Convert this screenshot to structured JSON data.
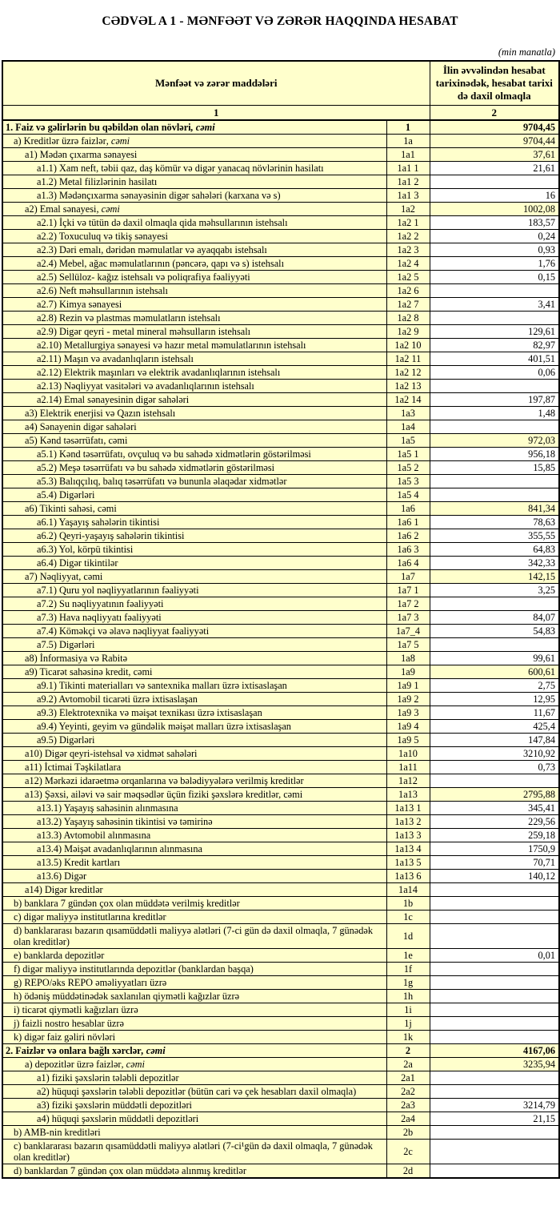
{
  "page": {
    "title": "CƏDVƏL A 1 - MƏNFƏƏT VƏ ZƏRƏR HAQQINDA HESABAT",
    "unit_note": "(min manatla)"
  },
  "colors": {
    "highlight": "#FFFFCC",
    "white": "#FFFFFF",
    "border": "#000000",
    "text": "#000000"
  },
  "table": {
    "header": {
      "items_label": "Mənfəət və zərər maddələri",
      "value_label": "İlin əvvəlindən hesabat tarixinədək, hesabat tarixi də daxil olmaqla",
      "items_col_no": "1",
      "value_col_no": "2"
    },
    "rows": [
      {
        "label": "1. Faiz və gəlirlərin bu qəbildən olan növləri",
        "italic": ", cəmi",
        "code": "1",
        "value": "9704,45",
        "level": 0,
        "bold": true,
        "hl": true
      },
      {
        "label": "a) Kreditlər üzrə faizlər",
        "italic": ", cəmi",
        "code": "1a",
        "value": "9704,44",
        "level": 1,
        "hl": true
      },
      {
        "label": "a1) Mədən çıxarma sənayesi",
        "code": "1a1",
        "value": "37,61",
        "level": 2,
        "hl": true
      },
      {
        "label": "a1.1) Xam neft, təbii qaz, daş kömür və digər yanacaq növlərinin hasilatı",
        "code": "1a1 1",
        "value": "21,61",
        "level": 3
      },
      {
        "label": "a1.2) Metal filizlərinin hasilatı",
        "code": "1a1 2",
        "value": "",
        "level": 3
      },
      {
        "label": "a1.3) Mədənçıxarma sənayəsinin digər sahələri (karxana və s)",
        "code": "1a1 3",
        "value": "16",
        "level": 3
      },
      {
        "label": "a2) Emal sənayesi",
        "italic": ", cəmi",
        "code": "1a2",
        "value": "1002,08",
        "level": 2,
        "hl": true
      },
      {
        "label": "a2.1) İçki və tütün də daxil olmaqla qida məhsullarının istehsalı",
        "code": "1a2 1",
        "value": "183,57",
        "level": 3
      },
      {
        "label": "a2.2) Toxuculuq və tikiş sənayesi",
        "code": "1a2 2",
        "value": "0,24",
        "level": 3
      },
      {
        "label": "a2.3) Dəri emalı, dəridən məmulatlar və ayaqqabı istehsalı",
        "code": "1a2 3",
        "value": "0,93",
        "level": 3
      },
      {
        "label": "a2.4) Mebel, ağac məmulatlarının (pəncərə, qapı və s) istehsalı",
        "code": "1a2 4",
        "value": "1,76",
        "level": 3
      },
      {
        "label": "a2.5) Sellüloz- kağız istehsalı və poliqrafiya fəaliyyəti",
        "code": "1a2 5",
        "value": "0,15",
        "level": 3
      },
      {
        "label": "a2.6) Neft məhsullarının istehsalı",
        "code": "1a2 6",
        "value": "",
        "level": 3
      },
      {
        "label": "a2.7) Kimya sənayesi",
        "code": "1a2 7",
        "value": "3,41",
        "level": 3
      },
      {
        "label": "a2.8) Rezin və plastmas məmulatların istehsalı",
        "code": "1a2 8",
        "value": "",
        "level": 3
      },
      {
        "label": "a2.9) Digər qeyri - metal mineral məhsulların istehsalı",
        "code": "1a2 9",
        "value": "129,61",
        "level": 3
      },
      {
        "label": "a2.10) Metallurgiya sənayesi və hazır metal məmulatlarının istehsalı",
        "code": "1a2 10",
        "value": "82,97",
        "level": 3
      },
      {
        "label": "a2.11) Maşın və avadanlıqların istehsalı",
        "code": "1a2 11",
        "value": "401,51",
        "level": 3
      },
      {
        "label": "a2.12) Elektrik maşınları və elektrik avadanlıqlarının istehsalı",
        "code": "1a2 12",
        "value": "0,06",
        "level": 3
      },
      {
        "label": "a2.13) Nəqliyyat vasitələri və avadanlıqlarının istehsalı",
        "code": "1a2 13",
        "value": "",
        "level": 3
      },
      {
        "label": "a2.14) Emal sənayesinin digər sahələri",
        "code": "1a2 14",
        "value": "197,87",
        "level": 3
      },
      {
        "label": "a3) Elektrik enerjisi və Qazın istehsalı",
        "code": "1a3",
        "value": "1,48",
        "level": 2
      },
      {
        "label": "a4) Sənayenin digər sahələri",
        "code": "1a4",
        "value": "",
        "level": 2
      },
      {
        "label": "a5) Kənd təsərrüfatı, cəmi",
        "code": "1a5",
        "value": "972,03",
        "level": 2,
        "hl": true
      },
      {
        "label": "a5.1) Kənd təsərrüfatı, ovçuluq və bu sahədə xidmətlərin göstərilməsi",
        "code": "1a5 1",
        "value": "956,18",
        "level": 3
      },
      {
        "label": "a5.2) Meşə təsərrüfatı və bu sahədə xidmətlərin göstərilməsi",
        "code": "1a5 2",
        "value": "15,85",
        "level": 3
      },
      {
        "label": "a5.3) Balıqçılıq, balıq təsərrüfatı və bununla əlaqədar xidmətlər",
        "code": "1a5 3",
        "value": "",
        "level": 3
      },
      {
        "label": "a5.4) Digərləri",
        "code": "1a5 4",
        "value": "",
        "level": 3
      },
      {
        "label": "a6) Tikinti sahəsi, cəmi",
        "code": "1a6",
        "value": "841,34",
        "level": 2,
        "hl": true
      },
      {
        "label": "a6.1) Yaşayış sahələrin tikintisi",
        "code": "1a6 1",
        "value": "78,63",
        "level": 3
      },
      {
        "label": "a6.2) Qeyri-yaşayış sahələrin tikintisi",
        "code": "1a6 2",
        "value": "355,55",
        "level": 3
      },
      {
        "label": "a6.3) Yol, körpü tikintisi",
        "code": "1a6 3",
        "value": "64,83",
        "level": 3
      },
      {
        "label": "a6.4) Digər tikintilər",
        "code": "1a6 4",
        "value": "342,33",
        "level": 3
      },
      {
        "label": "a7) Nəqliyyat, cəmi",
        "code": "1a7",
        "value": "142,15",
        "level": 2,
        "hl": true
      },
      {
        "label": "a7.1) Quru yol nəqliyyatlarının fəaliyyəti",
        "code": "1a7 1",
        "value": "3,25",
        "level": 3
      },
      {
        "label": "a7.2) Su nəqliyyatının fəaliyyəti",
        "code": "1a7 2",
        "value": "",
        "level": 3
      },
      {
        "label": "a7.3) Hava nəqliyyatı fəaliyyəti",
        "code": "1a7 3",
        "value": "84,07",
        "level": 3
      },
      {
        "label": "a7.4) Köməkçi və əlavə nəqliyyat fəaliyyəti",
        "code": "1a7_4",
        "value": "54,83",
        "level": 3
      },
      {
        "label": "a7.5) Digərləri",
        "code": "1a7 5",
        "value": "",
        "level": 3
      },
      {
        "label": "a8)  İnformasiya və Rabitə",
        "code": "1a8",
        "value": "99,61",
        "level": 2
      },
      {
        "label": "a9) Ticarət sahəsinə kredit, cəmi",
        "code": "1a9",
        "value": "600,61",
        "level": 2,
        "hl": true
      },
      {
        "label": "a9.1) Tikinti materialları və santexnika malları üzrə ixtisaslaşan",
        "code": "1a9 1",
        "value": "2,75",
        "level": 3
      },
      {
        "label": "a9.2) Avtomobil ticarəti üzrə ixtisaslaşan",
        "code": "1a9 2",
        "value": "12,95",
        "level": 3
      },
      {
        "label": "a9.3) Elektrotexnika və məişət texnikası üzrə ixtisaslaşan",
        "code": "1a9 3",
        "value": "11,67",
        "level": 3
      },
      {
        "label": "a9.4) Yeyinti, geyim və gündəlik məişət malları üzrə ixtisaslaşan",
        "code": "1a9 4",
        "value": "425,4",
        "level": 3
      },
      {
        "label": "a9.5) Digərləri",
        "code": "1a9 5",
        "value": "147,84",
        "level": 3
      },
      {
        "label": "a10) Digər qeyri-istehsal və xidmət sahələri",
        "code": "1a10",
        "value": "3210,92",
        "level": 2
      },
      {
        "label": "a11) İctimai Təşkilatlara",
        "code": "1a11",
        "value": "0,73",
        "level": 2
      },
      {
        "label": "a12) Mərkəzi  idarəetmə orqanlarına və bələdiyyələrə verilmiş kreditlər",
        "code": "1a12",
        "value": "",
        "level": 2
      },
      {
        "label": "a13) Şəxsi, ailəvi və sair məqsədlər üçün fiziki şəxslərə kreditlər, cəmi",
        "code": "1a13",
        "value": "2795,88",
        "level": 2,
        "hl": true
      },
      {
        "label": "a13.1) Yaşayış sahəsinin alınmasına",
        "code": "1a13 1",
        "value": "345,41",
        "level": 3
      },
      {
        "label": "a13.2) Yaşayış sahəsinin tikintisi və təmirinə",
        "code": "1a13 2",
        "value": "229,56",
        "level": 3
      },
      {
        "label": "a13.3) Avtomobil alınmasına",
        "code": "1a13 3",
        "value": "259,18",
        "level": 3
      },
      {
        "label": "a13.4) Məişət avadanlıqlarının alınmasına",
        "code": "1a13 4",
        "value": "1750,9",
        "level": 3
      },
      {
        "label": "a13.5) Kredit kartları",
        "code": "1a13 5",
        "value": "70,71",
        "level": 3
      },
      {
        "label": "a13.6) Digər",
        "code": "1a13 6",
        "value": "140,12",
        "level": 3
      },
      {
        "label": "a14) Digər kreditlər",
        "code": "1a14",
        "value": "",
        "level": 2
      },
      {
        "label": "b) banklara 7 gündən çox olan müddətə verilmiş kreditlər",
        "code": "1b",
        "value": "",
        "level": 1
      },
      {
        "label": "c) digər maliyyə institutlarına kreditlər",
        "code": "1c",
        "value": "",
        "level": 1
      },
      {
        "label": "d) banklararası bazarın qısamüddətli maliyyə alətləri (7-ci gün də daxil olmaqla, 7 günədək olan kreditlər)",
        "code": "1d",
        "value": "",
        "level": 1
      },
      {
        "label": "e) banklarda depozitlər",
        "code": "1e",
        "value": "0,01",
        "level": 1
      },
      {
        "label": "f) digər maliyyə institutlarında depozitlər (banklardan başqa)",
        "code": "1f",
        "value": "",
        "level": 1
      },
      {
        "label": "g) REPO/əks REPO əməliyyatları üzrə",
        "code": "1g",
        "value": "",
        "level": 1
      },
      {
        "label": "h) ödəniş müddətinədək saxlanılan qiymətli kağızlar üzrə",
        "code": "1h",
        "value": "",
        "level": 1
      },
      {
        "label": "i) ticarət qiymətli kağızları üzrə",
        "code": "1i",
        "value": "",
        "level": 1
      },
      {
        "label": "j) faizli nostro hesablar üzrə",
        "code": "1j",
        "value": "",
        "level": 1
      },
      {
        "label": "k) digər faiz gəliri növləri",
        "code": "1k",
        "value": "",
        "level": 1
      },
      {
        "label": "2. Faizlər və onlara bağlı xərclər",
        "italic": ", cəmi",
        "code": "2",
        "value": "4167,06",
        "level": 0,
        "bold": true,
        "hl": true
      },
      {
        "label": "a) depozitlər üzrə faizlər",
        "italic": ", cəmi",
        "code": "2a",
        "value": "3235,94",
        "level": 2,
        "hl": true
      },
      {
        "label": "a1) fiziki şəxslərin tələbli depozitlər",
        "code": "2a1",
        "value": "",
        "level": 3
      },
      {
        "label": "a2) hüquqi şəxslərin tələbli depozitlər (bütün cari və çek hesabları daxil olmaqla)",
        "code": "2a2",
        "value": "",
        "level": 3
      },
      {
        "label": "a3) fiziki şəxslərin müddətli depozitləri",
        "code": "2a3",
        "value": "3214,79",
        "level": 3
      },
      {
        "label": "a4) hüquqi şəxslərin müddətli depozitləri",
        "code": "2a4",
        "value": "21,15",
        "level": 3
      },
      {
        "label": "b) AMB-nin kreditləri",
        "code": "2b",
        "value": "",
        "level": 1
      },
      {
        "label": "c) banklararası bazarın qısamüddətli maliyyə alətləri (7-ci¹gün də daxil olmaqla, 7 günədək olan kreditlər)",
        "code": "2c",
        "value": "",
        "level": 1
      },
      {
        "label": "d) banklardan 7 gündən çox olan müddətə alınmış kreditlər",
        "code": "2d",
        "value": "",
        "level": 1
      }
    ]
  }
}
